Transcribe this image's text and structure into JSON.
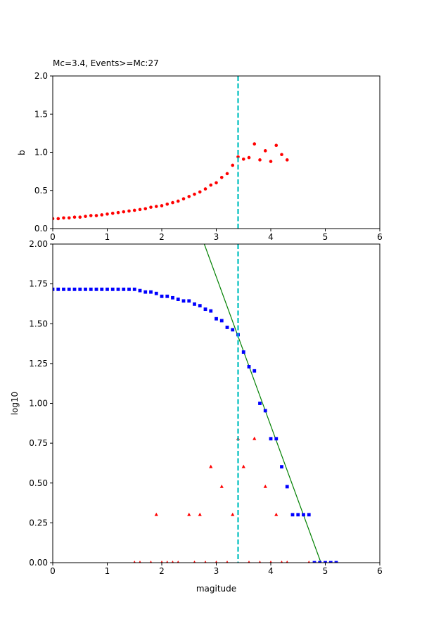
{
  "chart_data": [
    {
      "type": "scatter",
      "title": "Mc=3.4, Events>=Mc:27",
      "xlabel": "",
      "ylabel": "b",
      "xlim": [
        0,
        6
      ],
      "ylim": [
        0,
        2
      ],
      "xticks": [
        "0",
        "1",
        "2",
        "3",
        "4",
        "5",
        "6"
      ],
      "yticks": [
        "0.0",
        "0.5",
        "1.0",
        "1.5",
        "2.0"
      ],
      "mc_line": {
        "x": 3.4,
        "color": "#00bfbf"
      },
      "series": [
        {
          "marker": "circle",
          "color": "#ff0000",
          "points": [
            [
              0.0,
              0.13
            ],
            [
              0.1,
              0.13
            ],
            [
              0.2,
              0.14
            ],
            [
              0.3,
              0.14
            ],
            [
              0.4,
              0.15
            ],
            [
              0.5,
              0.15
            ],
            [
              0.6,
              0.16
            ],
            [
              0.7,
              0.17
            ],
            [
              0.8,
              0.17
            ],
            [
              0.9,
              0.18
            ],
            [
              1.0,
              0.19
            ],
            [
              1.1,
              0.2
            ],
            [
              1.2,
              0.21
            ],
            [
              1.3,
              0.22
            ],
            [
              1.4,
              0.23
            ],
            [
              1.5,
              0.24
            ],
            [
              1.6,
              0.25
            ],
            [
              1.7,
              0.26
            ],
            [
              1.8,
              0.28
            ],
            [
              1.9,
              0.29
            ],
            [
              2.0,
              0.3
            ],
            [
              2.1,
              0.32
            ],
            [
              2.2,
              0.34
            ],
            [
              2.3,
              0.36
            ],
            [
              2.4,
              0.39
            ],
            [
              2.5,
              0.42
            ],
            [
              2.6,
              0.45
            ],
            [
              2.7,
              0.48
            ],
            [
              2.8,
              0.52
            ],
            [
              2.9,
              0.57
            ],
            [
              3.0,
              0.6
            ],
            [
              3.1,
              0.67
            ],
            [
              3.2,
              0.72
            ],
            [
              3.3,
              0.83
            ],
            [
              3.4,
              0.94
            ],
            [
              3.5,
              0.91
            ],
            [
              3.6,
              0.93
            ],
            [
              3.7,
              1.11
            ],
            [
              3.8,
              0.9
            ],
            [
              3.9,
              1.02
            ],
            [
              4.0,
              0.88
            ],
            [
              4.1,
              1.09
            ],
            [
              4.2,
              0.97
            ],
            [
              4.3,
              0.9
            ]
          ]
        }
      ]
    },
    {
      "type": "scatter",
      "xlabel": "magitude",
      "ylabel": "log10",
      "xlim": [
        0,
        6
      ],
      "ylim": [
        0,
        2
      ],
      "xticks": [
        "0",
        "1",
        "2",
        "3",
        "4",
        "5",
        "6"
      ],
      "yticks": [
        "0.00",
        "0.25",
        "0.50",
        "0.75",
        "1.00",
        "1.25",
        "1.50",
        "1.75",
        "2.00"
      ],
      "mc_line": {
        "x": 3.4,
        "color": "#00bfbf"
      },
      "fit_line": {
        "color": "#008000",
        "points": [
          [
            2.78,
            2.0
          ],
          [
            4.92,
            0.0
          ]
        ]
      },
      "series": [
        {
          "marker": "square",
          "color": "#0000ff",
          "points": [
            [
              0.0,
              1.716
            ],
            [
              0.1,
              1.716
            ],
            [
              0.2,
              1.716
            ],
            [
              0.3,
              1.716
            ],
            [
              0.4,
              1.716
            ],
            [
              0.5,
              1.716
            ],
            [
              0.6,
              1.716
            ],
            [
              0.7,
              1.716
            ],
            [
              0.8,
              1.716
            ],
            [
              0.9,
              1.716
            ],
            [
              1.0,
              1.716
            ],
            [
              1.1,
              1.716
            ],
            [
              1.2,
              1.716
            ],
            [
              1.3,
              1.716
            ],
            [
              1.4,
              1.716
            ],
            [
              1.5,
              1.716
            ],
            [
              1.6,
              1.708
            ],
            [
              1.7,
              1.699
            ],
            [
              1.8,
              1.699
            ],
            [
              1.9,
              1.69
            ],
            [
              2.0,
              1.672
            ],
            [
              2.1,
              1.672
            ],
            [
              2.2,
              1.663
            ],
            [
              2.3,
              1.653
            ],
            [
              2.4,
              1.643
            ],
            [
              2.5,
              1.643
            ],
            [
              2.6,
              1.623
            ],
            [
              2.7,
              1.613
            ],
            [
              2.8,
              1.591
            ],
            [
              2.9,
              1.58
            ],
            [
              3.0,
              1.531
            ],
            [
              3.1,
              1.519
            ],
            [
              3.2,
              1.477
            ],
            [
              3.3,
              1.462
            ],
            [
              3.4,
              1.431
            ],
            [
              3.5,
              1.322
            ],
            [
              3.6,
              1.23
            ],
            [
              3.7,
              1.204
            ],
            [
              3.8,
              1.0
            ],
            [
              3.9,
              0.954
            ],
            [
              4.0,
              0.778
            ],
            [
              4.1,
              0.778
            ],
            [
              4.2,
              0.602
            ],
            [
              4.3,
              0.477
            ],
            [
              4.4,
              0.301
            ],
            [
              4.5,
              0.301
            ],
            [
              4.6,
              0.301
            ],
            [
              4.7,
              0.301
            ],
            [
              4.8,
              0.0
            ],
            [
              4.9,
              0.0
            ],
            [
              5.0,
              0.0
            ],
            [
              5.1,
              0.0
            ],
            [
              5.2,
              0.0
            ]
          ]
        },
        {
          "marker": "triangle",
          "color": "#ff0000",
          "points": [
            [
              1.5,
              0.0
            ],
            [
              1.6,
              0.0
            ],
            [
              1.8,
              0.0
            ],
            [
              1.9,
              0.301
            ],
            [
              2.0,
              0.0
            ],
            [
              2.1,
              0.0
            ],
            [
              2.2,
              0.0
            ],
            [
              2.3,
              0.0
            ],
            [
              2.5,
              0.301
            ],
            [
              2.6,
              0.0
            ],
            [
              2.7,
              0.301
            ],
            [
              2.8,
              0.0
            ],
            [
              2.9,
              0.602
            ],
            [
              3.0,
              0.0
            ],
            [
              3.1,
              0.477
            ],
            [
              3.2,
              0.0
            ],
            [
              3.3,
              0.301
            ],
            [
              3.4,
              0.778
            ],
            [
              3.5,
              0.602
            ],
            [
              3.6,
              0.0
            ],
            [
              3.7,
              0.778
            ],
            [
              3.8,
              0.0
            ],
            [
              3.9,
              0.477
            ],
            [
              4.0,
              0.0
            ],
            [
              4.1,
              0.301
            ],
            [
              4.2,
              0.0
            ],
            [
              4.3,
              0.0
            ],
            [
              4.7,
              0.0
            ]
          ]
        }
      ]
    }
  ]
}
